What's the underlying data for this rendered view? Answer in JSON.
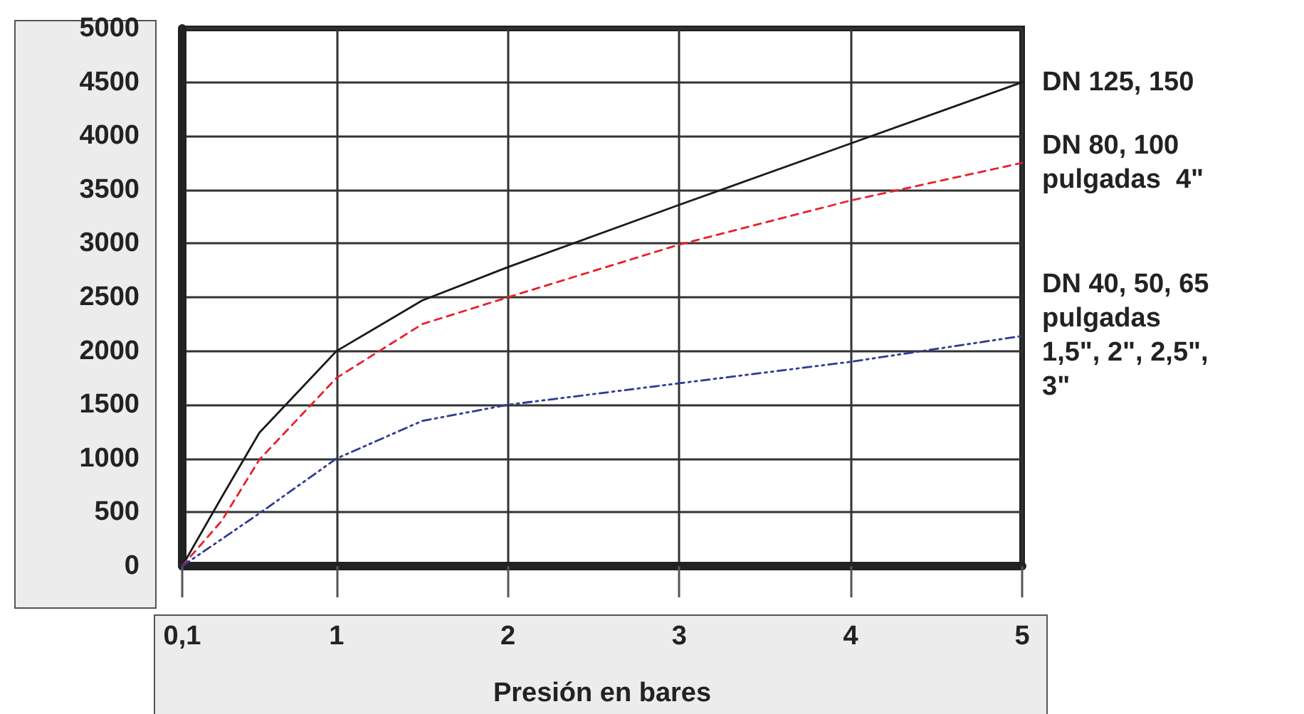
{
  "chart_data": {
    "type": "line",
    "xlabel": "Presión en bares",
    "x": [
      0.1,
      0.33,
      0.55,
      1,
      1.5,
      2,
      3,
      4,
      5
    ],
    "series": [
      {
        "name": "DN 125, 150",
        "color": "#1a1a1a",
        "line_style": "solid",
        "values": [
          0,
          640,
          1240,
          2000,
          2470,
          2780,
          3360,
          3930,
          4500
        ]
      },
      {
        "name": "DN 80, 100\npulgadas  4\"",
        "color": "#e8202a",
        "line_style": "dashed",
        "values": [
          0,
          420,
          990,
          1750,
          2250,
          2500,
          2990,
          3400,
          3750
        ]
      },
      {
        "name": "DN 40, 50, 65\npulgadas\n1,5\", 2\", 2,5\",\n3\"",
        "color": "#2e3a94",
        "line_style": "dotted",
        "values": [
          0,
          250,
          490,
          1000,
          1350,
          1500,
          1700,
          1900,
          2140
        ]
      }
    ],
    "xlim": [
      0.1,
      5
    ],
    "xticks": [
      {
        "value": 0.1,
        "label": "0,1"
      },
      1,
      2,
      3,
      4,
      5
    ],
    "ylim": [
      0,
      5000
    ],
    "yticks": [
      0,
      500,
      1000,
      1500,
      2000,
      2500,
      3000,
      3500,
      4000,
      4500,
      5000
    ],
    "grid": true,
    "legend": false,
    "marker": "none"
  }
}
